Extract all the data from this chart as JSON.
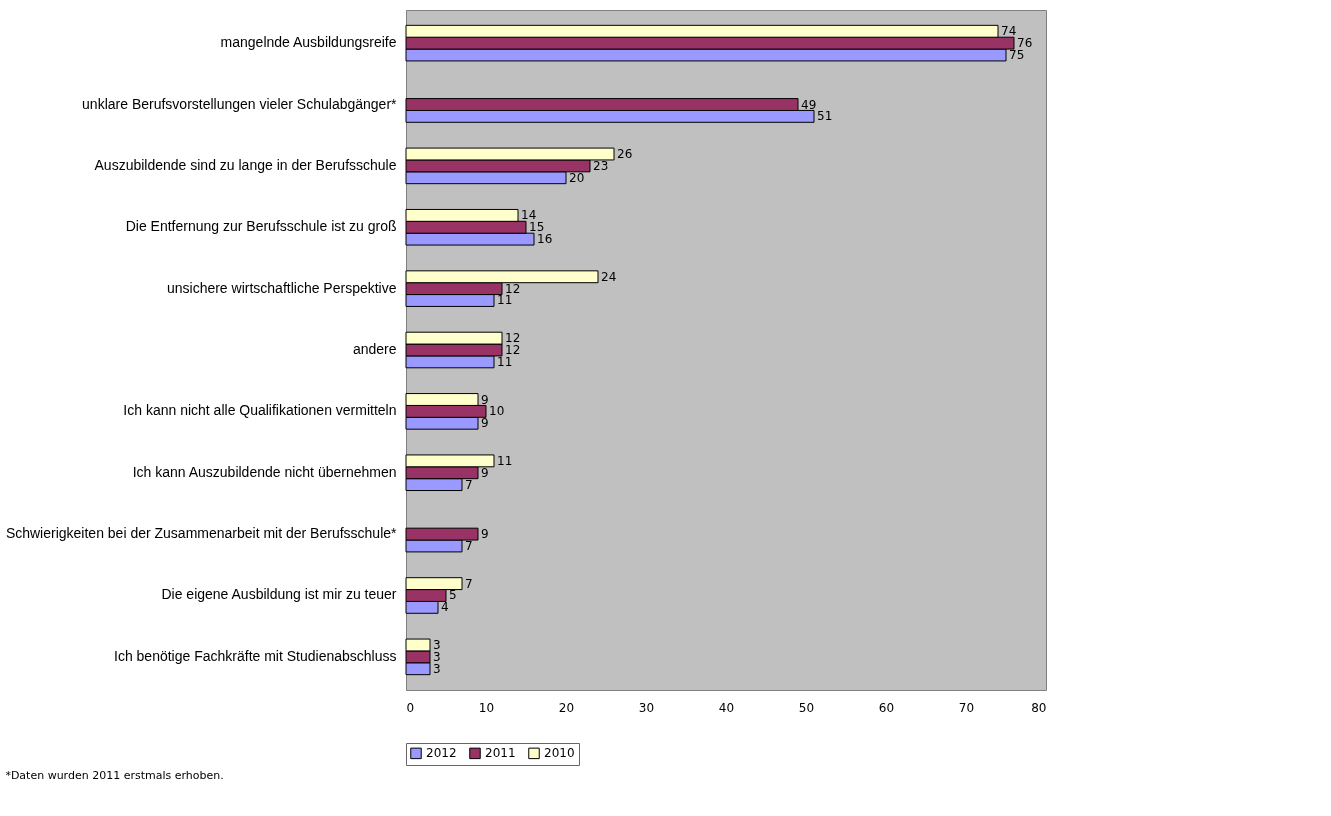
{
  "chart_data": {
    "type": "bar",
    "orientation": "horizontal",
    "data_labels": true,
    "legend": "bottom",
    "grid": false,
    "categories": [
      "mangelnde Ausbildungsreife",
      "unklare Berufsvorstellungen vieler Schulabgänger*",
      "Auszubildende sind zu lange in der Berufsschule",
      "Die Entfernung zur Berufsschule ist zu groß",
      "unsichere wirtschaftliche Perspektive",
      "andere",
      "Ich kann nicht alle Qualifikationen vermitteln",
      "Ich kann Auszubildende nicht übernehmen",
      "Schwierigkeiten bei der Zusammenarbeit mit der Berufsschule*",
      "Die eigene Ausbildung ist mir zu teuer",
      "Ich benötige Fachkräfte mit Studienabschluss"
    ],
    "series": [
      {
        "name": "2012",
        "color": "#9999ff",
        "values": [
          75,
          51,
          20,
          16,
          11,
          11,
          9,
          7,
          7,
          4,
          3
        ]
      },
      {
        "name": "2011",
        "color": "#993366",
        "values": [
          76,
          49,
          23,
          15,
          12,
          12,
          10,
          9,
          9,
          5,
          3
        ]
      },
      {
        "name": "2010",
        "color": "#ffffcc",
        "values": [
          74,
          null,
          26,
          14,
          24,
          12,
          9,
          11,
          null,
          7,
          3
        ]
      }
    ],
    "xlim": [
      0,
      80
    ],
    "xticks": [
      0,
      10,
      20,
      30,
      40,
      50,
      60,
      70,
      80
    ],
    "annotations": [
      "*Daten wurden 2011 erstmals erhoben."
    ]
  }
}
